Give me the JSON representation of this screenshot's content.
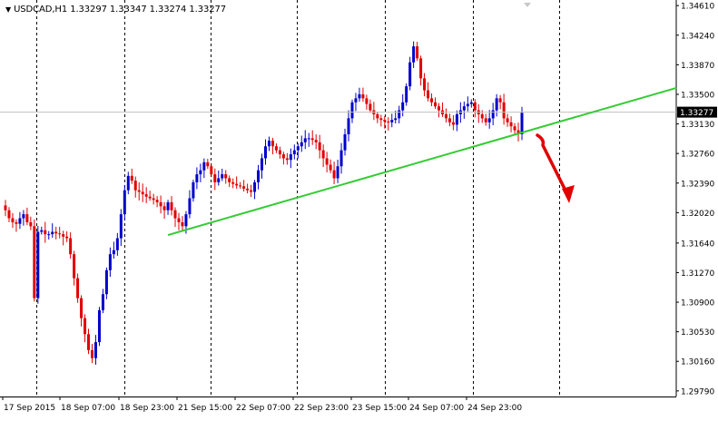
{
  "header": {
    "symbol_line": "USDCAD,H1  1.33297 1.33347 1.33274 1.33277"
  },
  "colors": {
    "bull": "#0000cc",
    "bear": "#e00000",
    "wick": "#000000",
    "trendline": "#33cc33",
    "arrow": "#e00000",
    "price_line": "#c0c0c0",
    "grid": "#000000",
    "current_price_bg": "#000000",
    "current_price_fg": "#ffffff"
  },
  "chart_data": {
    "type": "candlestick",
    "symbol": "USDCAD",
    "timeframe": "H1",
    "ohlc_header": {
      "open": 1.33297,
      "high": 1.33347,
      "low": 1.33274,
      "close": 1.33277
    },
    "ylim": [
      1.2972,
      1.3468
    ],
    "y_ticks": [
      "1.34610",
      "1.34240",
      "1.33870",
      "1.33500",
      "1.33130",
      "1.32760",
      "1.32390",
      "1.32020",
      "1.31640",
      "1.31270",
      "1.30900",
      "1.30530",
      "1.30160",
      "1.29790"
    ],
    "x_ticks": [
      "17 Sep 2015",
      "18 Sep 07:00",
      "18 Sep 23:00",
      "21 Sep 15:00",
      "22 Sep 07:00",
      "22 Sep 23:00",
      "23 Sep 15:00",
      "24 Sep 07:00",
      "24 Sep 23:00"
    ],
    "current_price": "1.33277",
    "grid": "vertical dashed",
    "close_series": [
      1.3205,
      1.3195,
      1.319,
      1.3188,
      1.3195,
      1.32,
      1.319,
      1.3185,
      1.3095,
      1.3178,
      1.318,
      1.3175,
      1.3175,
      1.3178,
      1.3176,
      1.3175,
      1.3172,
      1.317,
      1.315,
      1.312,
      1.3095,
      1.307,
      1.305,
      1.303,
      1.302,
      1.304,
      1.308,
      1.31,
      1.313,
      1.315,
      1.3155,
      1.317,
      1.32,
      1.323,
      1.3248,
      1.3242,
      1.323,
      1.3228,
      1.3225,
      1.3222,
      1.322,
      1.3218,
      1.3215,
      1.321,
      1.3205,
      1.3215,
      1.3205,
      1.3195,
      1.319,
      1.3185,
      1.32,
      1.322,
      1.324,
      1.325,
      1.3255,
      1.3265,
      1.326,
      1.325,
      1.324,
      1.3245,
      1.325,
      1.3245,
      1.324,
      1.3238,
      1.3236,
      1.3235,
      1.3232,
      1.323,
      1.3228,
      1.324,
      1.3255,
      1.327,
      1.3285,
      1.3292,
      1.3285,
      1.328,
      1.3275,
      1.327,
      1.3268,
      1.3275,
      1.328,
      1.3285,
      1.329,
      1.3295,
      1.3295,
      1.3293,
      1.329,
      1.328,
      1.327,
      1.3262,
      1.3255,
      1.3245,
      1.326,
      1.328,
      1.33,
      1.332,
      1.334,
      1.3345,
      1.335,
      1.3345,
      1.3338,
      1.333,
      1.3325,
      1.332,
      1.3318,
      1.3316,
      1.3315,
      1.3318,
      1.332,
      1.333,
      1.334,
      1.336,
      1.339,
      1.341,
      1.3395,
      1.337,
      1.3355,
      1.3345,
      1.334,
      1.3335,
      1.333,
      1.3325,
      1.332,
      1.3315,
      1.3312,
      1.3325,
      1.333,
      1.3335,
      1.3338,
      1.334,
      1.333,
      1.3325,
      1.332,
      1.3315,
      1.332,
      1.333,
      1.3345,
      1.334,
      1.332,
      1.3315,
      1.331,
      1.3305,
      1.33,
      1.3327
    ],
    "annotations": [
      {
        "type": "trendline",
        "from": {
          "x": "21 Sep 15:00",
          "y": 1.3174
        },
        "to": {
          "x": "beyond last bar",
          "y": 1.3358
        }
      },
      {
        "type": "arrow",
        "direction": "down"
      }
    ]
  }
}
